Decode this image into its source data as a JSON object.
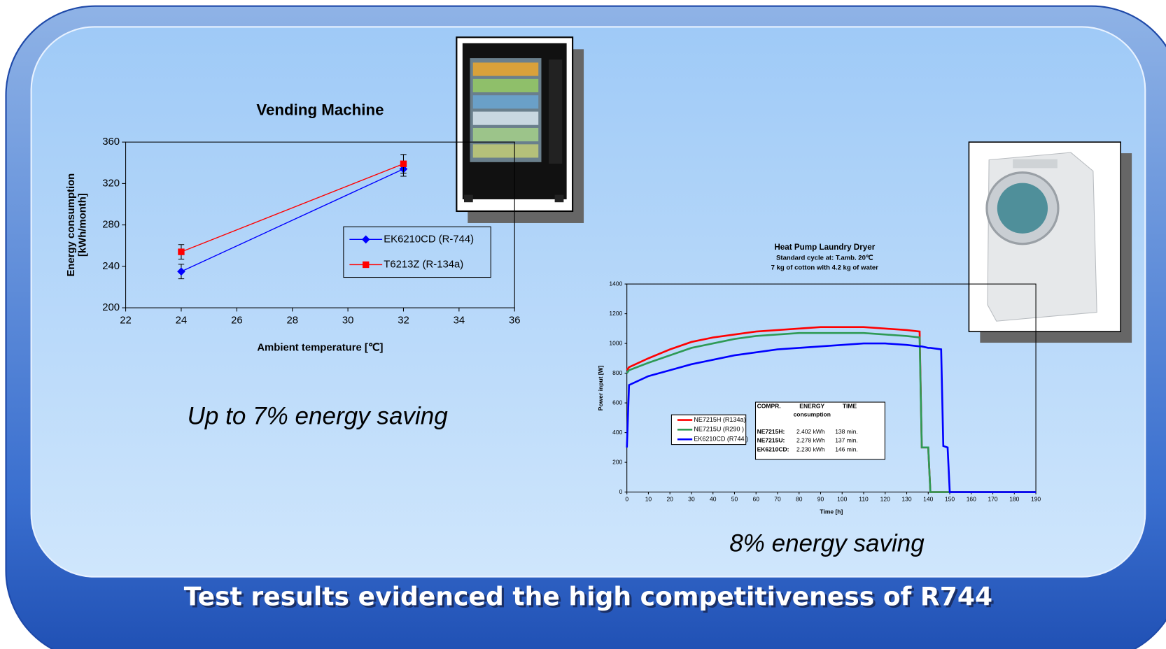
{
  "chart_data": [
    {
      "type": "line",
      "title": "Vending Machine",
      "xlabel": "Ambient temperature [℃]",
      "ylabel": [
        "Energy consumption",
        "[kWh/month]"
      ],
      "x": [
        24,
        32
      ],
      "series": [
        {
          "name": "EK6210CD (R-744)",
          "color": "#0000ff",
          "marker": "diamond",
          "values": [
            235,
            334
          ],
          "errors": [
            7,
            7
          ]
        },
        {
          "name": "T6213Z (R-134a)",
          "color": "#ff0000",
          "marker": "square",
          "values": [
            254,
            339
          ],
          "errors": [
            7,
            9
          ]
        }
      ],
      "xlim": [
        22,
        36
      ],
      "xticks": [
        22,
        24,
        26,
        28,
        30,
        32,
        34,
        36
      ],
      "ylim": [
        200,
        360
      ],
      "yticks": [
        200,
        240,
        280,
        320,
        360
      ],
      "grid": false
    },
    {
      "type": "line",
      "title": "Heat Pump Laundry Dryer",
      "subtitle": [
        "Standard cycle at: T.amb. 20℃",
        "7 kg of cotton with 4.2 kg of water"
      ],
      "xlabel": "Time [h]",
      "ylabel": [
        "Power input [W]"
      ],
      "x": [
        0,
        1,
        10,
        20,
        30,
        40,
        50,
        60,
        70,
        80,
        90,
        100,
        110,
        120,
        130,
        136,
        137,
        140,
        141,
        146,
        147,
        149,
        150,
        190
      ],
      "series": [
        {
          "name": "NE7215H (R134a)",
          "color": "#ff0000",
          "values": [
            820,
            840,
            900,
            960,
            1010,
            1040,
            1060,
            1080,
            1090,
            1100,
            1110,
            1110,
            1110,
            1100,
            1090,
            1080,
            300,
            300,
            0,
            0,
            0,
            0,
            0,
            0
          ]
        },
        {
          "name": "NE7215U (R290 )",
          "color": "#2e9a55",
          "values": [
            800,
            820,
            870,
            920,
            970,
            1000,
            1030,
            1050,
            1060,
            1070,
            1070,
            1070,
            1070,
            1060,
            1050,
            1040,
            300,
            300,
            0,
            0,
            0,
            0,
            0,
            0
          ]
        },
        {
          "name": "EK6210CD (R744 )",
          "color": "#0000ff",
          "values": [
            300,
            720,
            780,
            820,
            860,
            890,
            920,
            940,
            960,
            970,
            980,
            990,
            1000,
            1000,
            990,
            980,
            980,
            970,
            970,
            960,
            310,
            300,
            0,
            0
          ]
        }
      ],
      "xlim": [
        0,
        190
      ],
      "xticks": [
        0,
        10,
        20,
        30,
        40,
        50,
        60,
        70,
        80,
        90,
        100,
        110,
        120,
        130,
        140,
        150,
        160,
        170,
        180,
        190
      ],
      "ylim": [
        0,
        1400
      ],
      "yticks": [
        0,
        200,
        400,
        600,
        800,
        1000,
        1200,
        1400
      ],
      "grid": false,
      "table": {
        "header": [
          "COMPR.",
          [
            "ENERGY",
            "consumption"
          ],
          "TIME"
        ],
        "rows": [
          [
            "NE7215H:",
            "2.402 kWh",
            "138 min."
          ],
          [
            "NE7215U:",
            "2.278 kWh",
            "137 min."
          ],
          [
            "EK6210CD:",
            "2.230 kWh",
            "146 min."
          ]
        ]
      }
    }
  ],
  "captions": [
    "Up to 7% energy saving",
    "8% energy saving"
  ],
  "footer": "Test results evidenced the high competitiveness of R744"
}
